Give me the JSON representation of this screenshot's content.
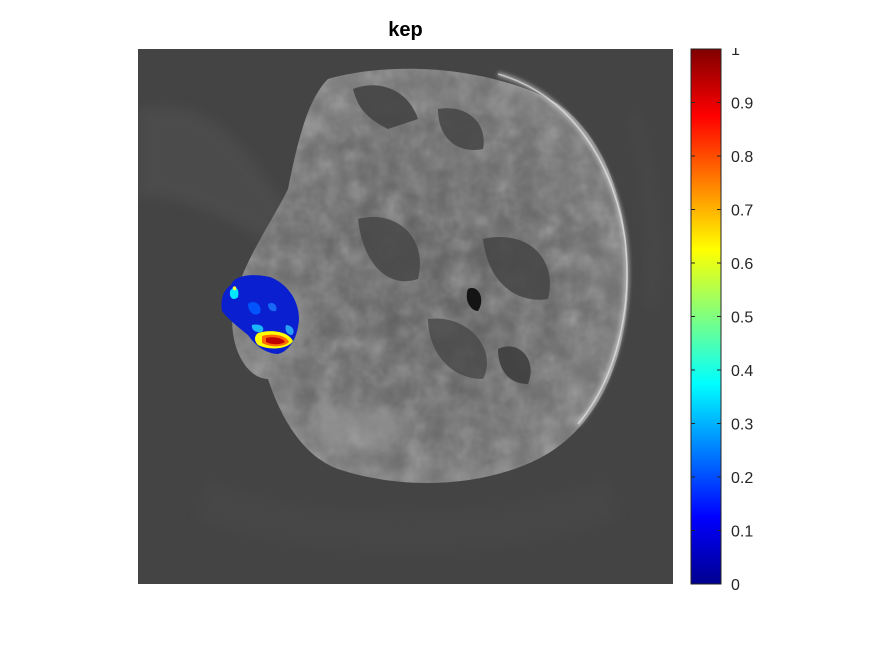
{
  "chart_data": {
    "type": "heatmap",
    "title": "kep",
    "xlabel": "",
    "ylabel": "",
    "colormap": "jet",
    "clim": [
      0,
      1
    ],
    "colorbar": {
      "location": "right",
      "ticks": [
        0,
        0.1,
        0.2,
        0.3,
        0.4,
        0.5,
        0.6,
        0.7,
        0.8,
        0.9,
        1
      ],
      "tick_labels": [
        "0",
        "0.1",
        "0.2",
        "0.3",
        "0.4",
        "0.5",
        "0.6",
        "0.7",
        "0.8",
        "0.9",
        "1"
      ]
    },
    "background": "grayscale parametric map of head cross-section",
    "overlay_region_values": {
      "mostly": 0.15,
      "max_approx": 0.95
    }
  },
  "colors": {
    "background_gray": "#444444",
    "jet_low": "#00008f",
    "jet_high": "#800000"
  }
}
